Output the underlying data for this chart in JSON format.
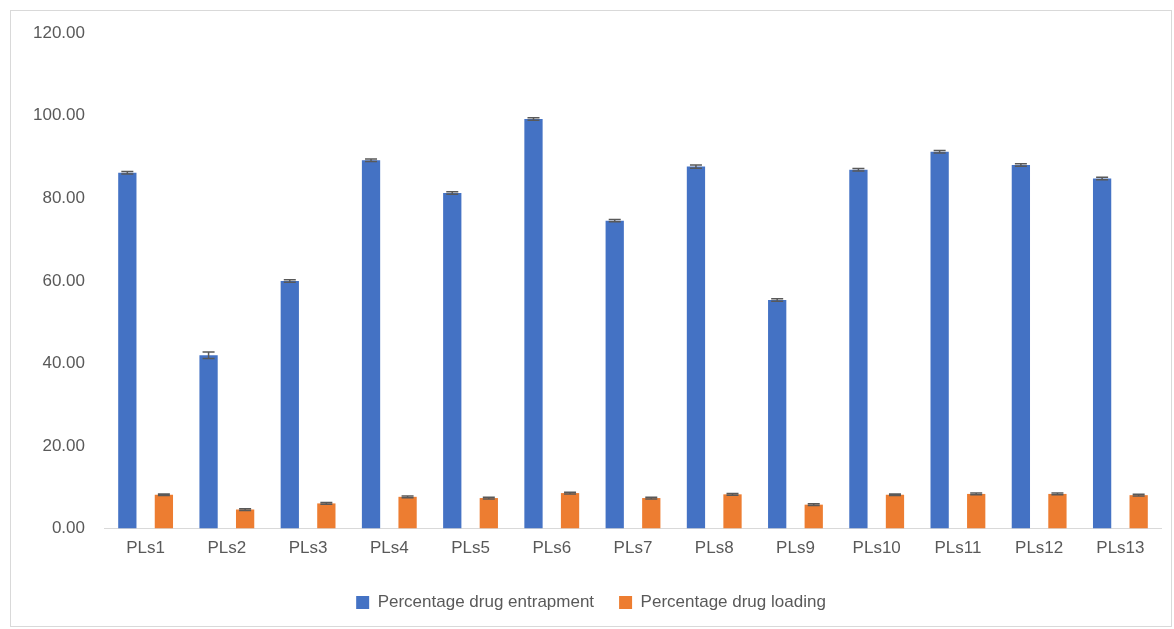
{
  "chart_data": {
    "type": "bar",
    "categories": [
      "PLs1",
      "PLs2",
      "PLs3",
      "PLs4",
      "PLs5",
      "PLs6",
      "PLs7",
      "PLs8",
      "PLs9",
      "PLs10",
      "PLs11",
      "PLs12",
      "PLs13"
    ],
    "series": [
      {
        "name": "Percentage drug entrapment",
        "color": "#4472c4",
        "values": [
          86.2,
          42.0,
          60.0,
          89.2,
          81.3,
          99.2,
          74.6,
          87.7,
          55.4,
          86.9,
          91.3,
          88.1,
          84.8
        ],
        "errors": [
          0.3,
          0.8,
          0.3,
          0.3,
          0.3,
          0.3,
          0.3,
          0.4,
          0.3,
          0.3,
          0.3,
          0.3,
          0.3
        ]
      },
      {
        "name": "Percentage drug loading",
        "color": "#ed7d31",
        "values": [
          8.2,
          4.6,
          6.1,
          7.7,
          7.4,
          8.6,
          7.4,
          8.3,
          5.8,
          8.2,
          8.4,
          8.4,
          8.1
        ],
        "errors": [
          0.2,
          0.2,
          0.2,
          0.2,
          0.2,
          0.2,
          0.2,
          0.2,
          0.2,
          0.2,
          0.2,
          0.2,
          0.2
        ]
      }
    ],
    "ylim": [
      0,
      120
    ],
    "yticks": [
      {
        "value": 0,
        "label": "0.00"
      },
      {
        "value": 20,
        "label": "20.00"
      },
      {
        "value": 40,
        "label": "40.00"
      },
      {
        "value": 60,
        "label": "60.00"
      },
      {
        "value": 80,
        "label": "80.00"
      },
      {
        "value": 100,
        "label": "100.00"
      },
      {
        "value": 120,
        "label": "120.00"
      }
    ],
    "grid": false,
    "legend": "bottom"
  }
}
